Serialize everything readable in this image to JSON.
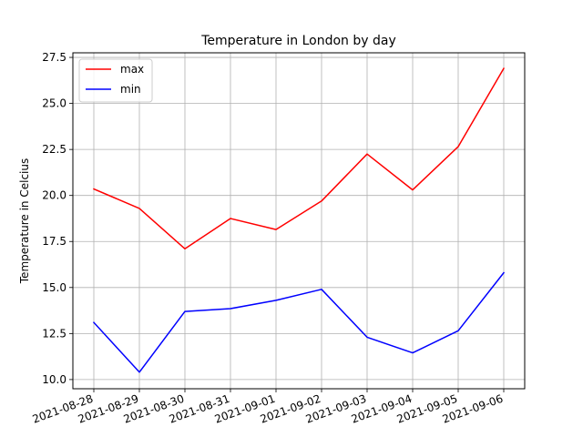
{
  "chart_data": {
    "type": "line",
    "title": "Temperature in London by day",
    "xlabel": "",
    "ylabel": "Temperature in Celcius",
    "x": [
      "2021-08-28",
      "2021-08-29",
      "2021-08-30",
      "2021-08-31",
      "2021-09-01",
      "2021-09-02",
      "2021-09-03",
      "2021-09-04",
      "2021-09-05",
      "2021-09-06"
    ],
    "series": [
      {
        "name": "max",
        "color": "#ff0000",
        "values": [
          20.35,
          19.3,
          17.1,
          18.75,
          18.15,
          19.7,
          22.25,
          20.3,
          22.65,
          26.9
        ]
      },
      {
        "name": "min",
        "color": "#0000ff",
        "values": [
          13.1,
          10.4,
          13.7,
          13.85,
          14.3,
          14.9,
          12.3,
          11.45,
          12.65,
          15.8
        ]
      }
    ],
    "yticks": [
      "10.0",
      "12.5",
      "15.0",
      "17.5",
      "20.0",
      "22.5",
      "25.0",
      "27.5"
    ],
    "ylim": [
      9.5,
      27.75
    ],
    "grid": true,
    "legend_position": "top-left",
    "x_tick_rotation": 20
  }
}
